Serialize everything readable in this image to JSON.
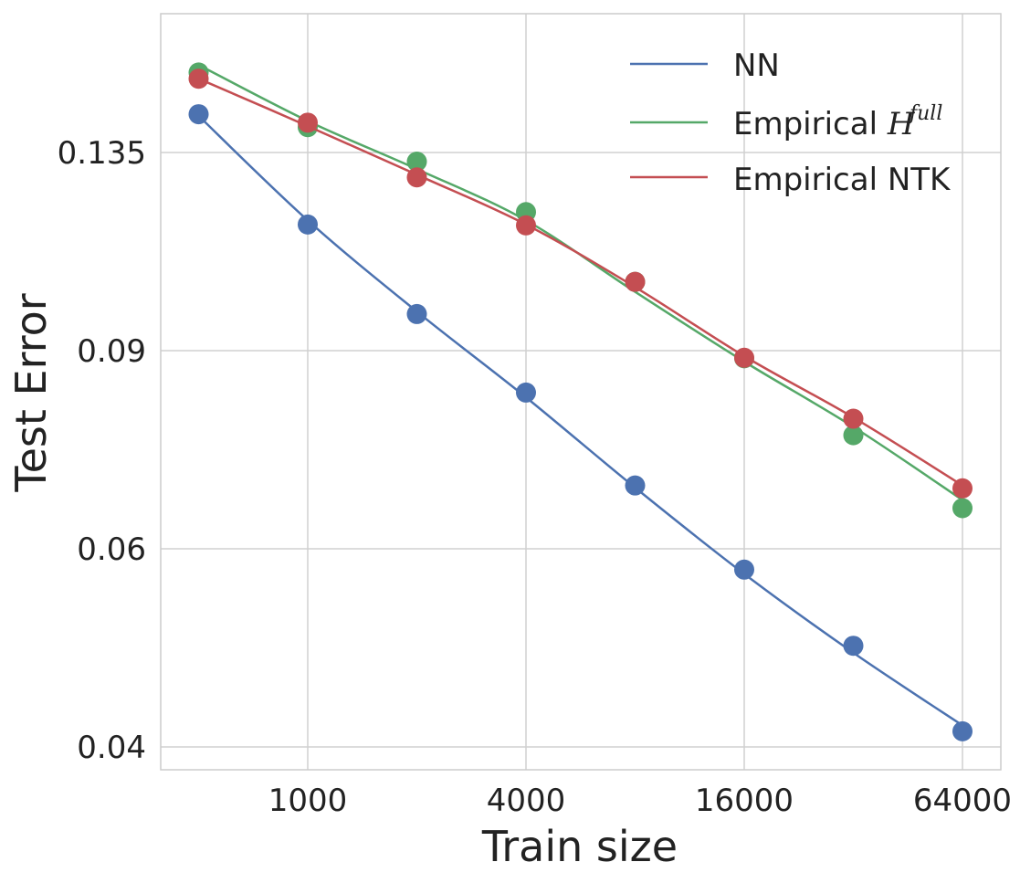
{
  "chart_data": {
    "type": "line",
    "title": "",
    "xlabel": "Train size",
    "ylabel": "Test Error",
    "xscale": "log2",
    "yscale": "log",
    "xlim": [
      350,
      80000
    ],
    "ylim": [
      0.0385,
      0.168
    ],
    "xticks": [
      1000,
      4000,
      16000,
      64000
    ],
    "xtick_labels": [
      "1000",
      "4000",
      "16000",
      "64000"
    ],
    "yticks": [
      0.04,
      0.06,
      0.09,
      0.135
    ],
    "ytick_labels": [
      "0.04",
      "0.06",
      "0.09",
      "0.135"
    ],
    "grid": true,
    "legend_position": "top-right",
    "series": [
      {
        "name": "NN",
        "color": "#4c72b0",
        "x": [
          500,
          1000,
          2000,
          4000,
          8000,
          16000,
          32000,
          64000
        ],
        "points": [
          0.146,
          0.1165,
          0.097,
          0.0826,
          0.0683,
          0.0575,
          0.0492,
          0.0413
        ],
        "fit": [
          0.1455,
          0.1175,
          0.0975,
          0.0818,
          0.068,
          0.057,
          0.0485,
          0.0418
        ]
      },
      {
        "name": "Empirical H^{full}",
        "legend_base": "Empirical ",
        "legend_sym": "H",
        "legend_sup": "full",
        "color": "#55a868",
        "x": [
          500,
          1000,
          2000,
          4000,
          8000,
          16000,
          32000,
          64000
        ],
        "points": [
          0.159,
          0.1422,
          0.1325,
          0.1195,
          0.1036,
          0.0886,
          0.0757,
          0.0652
        ],
        "fit": [
          0.1615,
          0.144,
          0.1305,
          0.1175,
          0.1015,
          0.088,
          0.077,
          0.0663
        ]
      },
      {
        "name": "Empirical NTK",
        "color": "#c44e52",
        "x": [
          500,
          1000,
          2000,
          4000,
          8000,
          16000,
          32000,
          64000
        ],
        "points": [
          0.157,
          0.1435,
          0.1283,
          0.1163,
          0.1036,
          0.0887,
          0.0783,
          0.0679
        ],
        "fit": [
          0.157,
          0.1425,
          0.129,
          0.1165,
          0.1025,
          0.089,
          0.0785,
          0.0683
        ]
      }
    ]
  }
}
